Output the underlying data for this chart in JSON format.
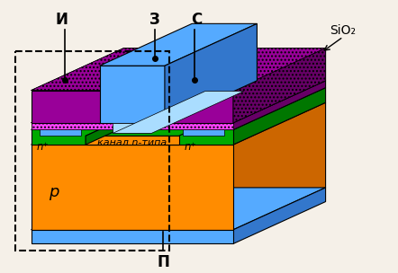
{
  "bg_color": "#f5f0e8",
  "orange": "#FF8C00",
  "orange_dark": "#CC6600",
  "blue_light": "#55AAFF",
  "blue_side": "#3377CC",
  "blue_bottom": "#55AAFF",
  "purple": "#990099",
  "purple_dark": "#660066",
  "green": "#00AA00",
  "green_dark": "#007700",
  "pink": "#FF44FF",
  "white": "#FFFFFF",
  "black": "#000000",
  "title_И": "И",
  "title_З": "З",
  "title_С": "С",
  "title_SiO2": "SiO₂",
  "title_p": "p",
  "title_П": "П",
  "title_n_plus": "n⁺",
  "title_kanal": "канал n-типа"
}
